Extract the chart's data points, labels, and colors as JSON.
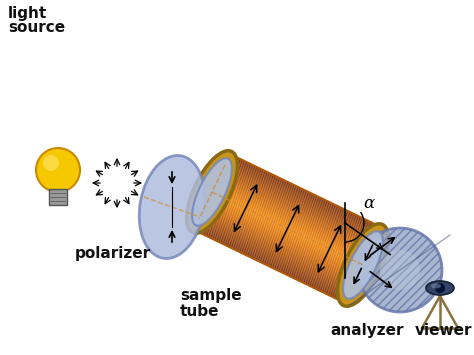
{
  "bg_color": "#ffffff",
  "labels": {
    "light_source": [
      "light",
      "source"
    ],
    "polarizer": "polarizer",
    "sample_tube": [
      "sample",
      "tube"
    ],
    "analyzer": "analyzer",
    "viewer": "viewer",
    "alpha": "α"
  },
  "colors": {
    "bulb_yellow": "#f0c020",
    "bulb_base": "#888888",
    "polarizer_disk_face": "#b0bedd",
    "polarizer_disk_edge": "#7788bb",
    "tube_orange_mid": "#e8780a",
    "tube_orange_edge": "#b85808",
    "tube_rim_face": "#c8941a",
    "tube_rim_edge": "#8b6914",
    "analyzer_disk_face": "#9aaac8",
    "analyzer_disk_edge": "#6677aa",
    "arrow_color": "#111111",
    "text_color": "#111111",
    "dashed_line": "#cc8844"
  },
  "figure_size": [
    4.74,
    3.55
  ],
  "dpi": 100
}
